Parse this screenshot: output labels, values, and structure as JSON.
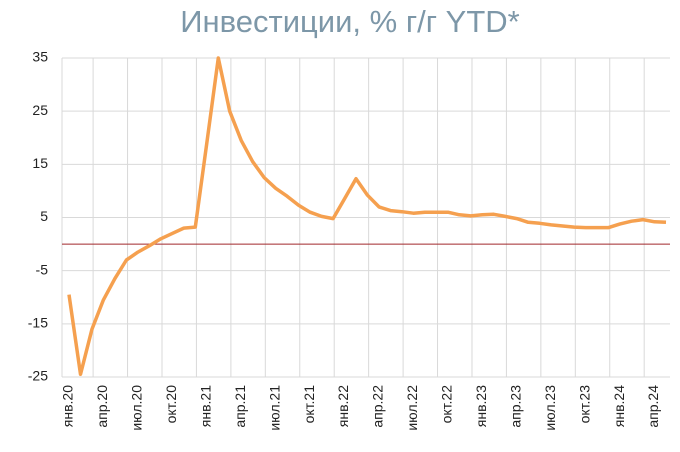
{
  "chart_data": {
    "type": "line",
    "title": "Инвестиции, % г/г YTD*",
    "categories": [
      "янв.20",
      null,
      null,
      "апр.20",
      null,
      null,
      "июл.20",
      null,
      null,
      "окт.20",
      null,
      null,
      "янв.21",
      null,
      null,
      "апр.21",
      null,
      null,
      "июл.21",
      null,
      null,
      "окт.21",
      null,
      null,
      "янв.22",
      null,
      null,
      "апр.22",
      null,
      null,
      "июл.22",
      null,
      null,
      "окт.22",
      null,
      null,
      "янв.23",
      null,
      null,
      "апр.23",
      null,
      null,
      "июл.23",
      null,
      null,
      "окт.23",
      null,
      null,
      "янв.24",
      null,
      null,
      "апр.24",
      null
    ],
    "series": [
      {
        "name": null,
        "color": "#f5a04f",
        "values": [
          -9.5,
          -24.5,
          -16,
          -10.5,
          -6.5,
          -3,
          -1.5,
          -0.3,
          1,
          2,
          3,
          3.2,
          19,
          35,
          25,
          19.5,
          15.5,
          12.5,
          10.5,
          9,
          7.3,
          6,
          5.2,
          4.8,
          8.5,
          12.3,
          9.2,
          7,
          6.3,
          6.1,
          5.8,
          6,
          6,
          6,
          5.5,
          5.3,
          5.5,
          5.6,
          5.2,
          4.8,
          4.1,
          3.9,
          3.6,
          3.4,
          3.2,
          3.1,
          3.1,
          3.1,
          3.8,
          4.3,
          4.6,
          4.2,
          4.1
        ]
      }
    ],
    "ylim": [
      -25,
      35
    ],
    "yticks": [
      35,
      25,
      15,
      5,
      -5,
      -15,
      -25
    ],
    "grid": true,
    "reference_line": {
      "value": 0,
      "color": "#a0282b"
    }
  }
}
